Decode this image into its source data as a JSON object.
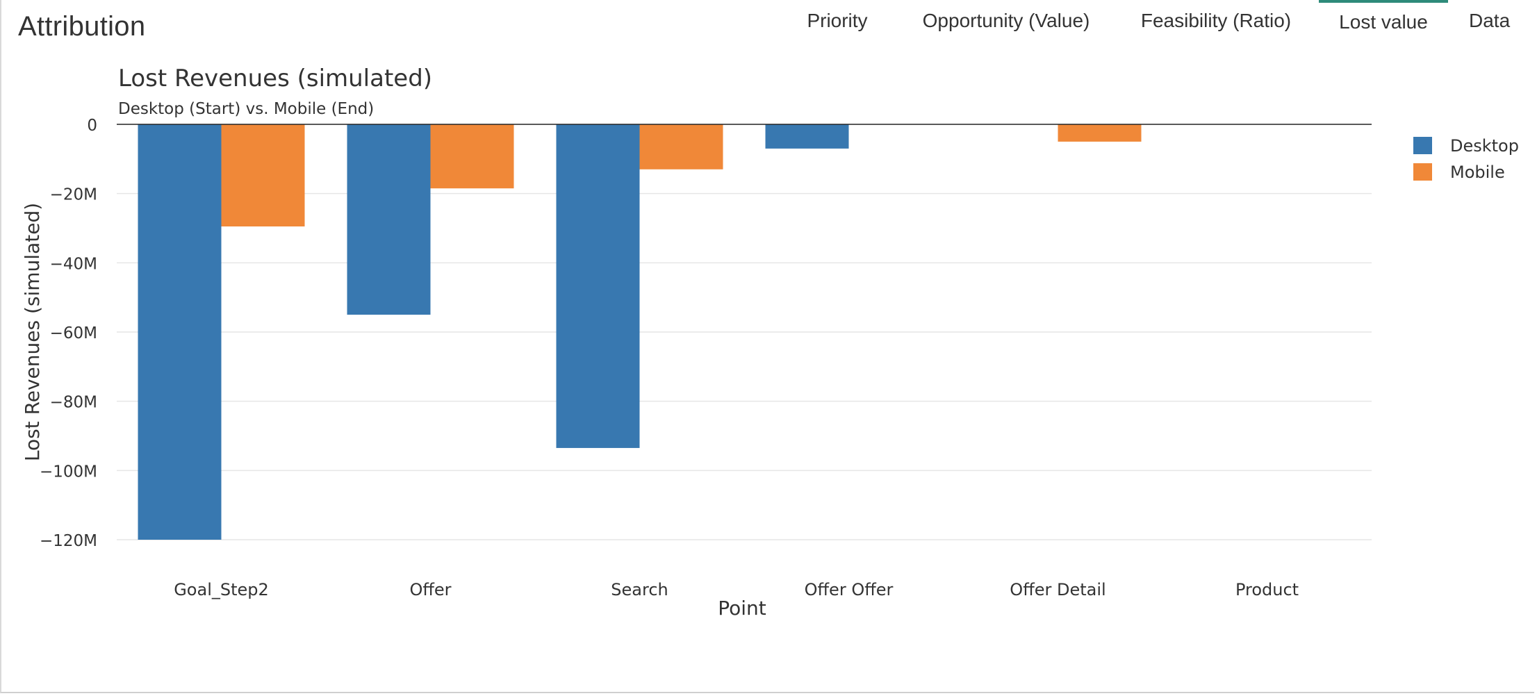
{
  "header": {
    "title": "Attribution",
    "tabs": [
      {
        "label": "Priority",
        "active": false
      },
      {
        "label": "Opportunity (Value)",
        "active": false
      },
      {
        "label": "Feasibility (Ratio)",
        "active": false
      },
      {
        "label": "Lost value",
        "active": true
      },
      {
        "label": "Data",
        "active": false
      }
    ]
  },
  "colors": {
    "desktop": "#3878b0",
    "mobile": "#f08838",
    "active_tab": "#2e8b7a",
    "grid": "#e6e6e6",
    "zero_line": "#222222"
  },
  "chart_data": {
    "type": "bar",
    "title": "Lost Revenues (simulated)",
    "subtitle": "Desktop (Start) vs. Mobile (End)",
    "xlabel": "Point",
    "ylabel": "Lost Revenues (simulated)",
    "categories": [
      "Goal_Step2",
      "Offer",
      "Search",
      "Offer Offer",
      "Offer Detail",
      "Product"
    ],
    "series": [
      {
        "name": "Desktop",
        "values": [
          -120000000,
          -55000000,
          -93500000,
          -7000000,
          0,
          0
        ]
      },
      {
        "name": "Mobile",
        "values": [
          -29500000,
          -18500000,
          -13000000,
          0,
          -5000000,
          0
        ]
      }
    ],
    "ylim": [
      -120000000,
      0
    ],
    "yticks": [
      0,
      -20000000,
      -40000000,
      -60000000,
      -80000000,
      -100000000,
      -120000000
    ],
    "ytick_labels": [
      "0",
      "−20M",
      "−40M",
      "−60M",
      "−80M",
      "−100M",
      "−120M"
    ],
    "grid": true,
    "legend": "top-right",
    "legend_labels": [
      "Desktop",
      "Mobile"
    ]
  }
}
